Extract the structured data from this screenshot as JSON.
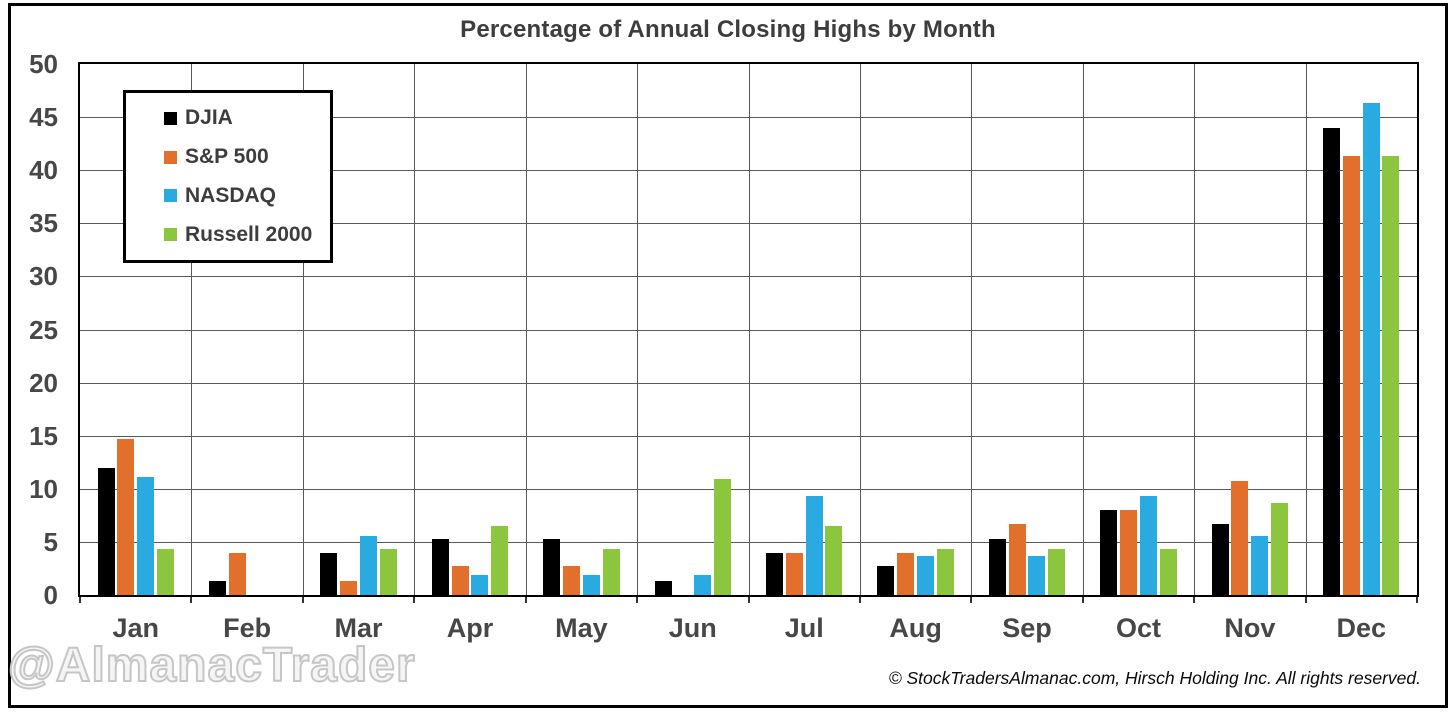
{
  "watermark": "@AlmanacTrader",
  "copyright_note": "© StockTradersAlmanac.com, Hirsch Holding Inc. All rights reserved.",
  "chart_data": {
    "type": "bar",
    "title": "Percentage of Annual Closing Highs by Month",
    "xlabel": "",
    "ylabel": "",
    "categories": [
      "Jan",
      "Feb",
      "Mar",
      "Apr",
      "May",
      "Jun",
      "Jul",
      "Aug",
      "Sep",
      "Oct",
      "Nov",
      "Dec"
    ],
    "series": [
      {
        "name": "DJIA",
        "color": "#000000",
        "values": [
          12.0,
          1.3,
          4.0,
          5.3,
          5.3,
          1.3,
          4.0,
          2.7,
          5.3,
          8.0,
          6.7,
          44.0
        ]
      },
      {
        "name": "S&P 500",
        "color": "#E2702C",
        "values": [
          14.7,
          4.0,
          1.3,
          2.7,
          2.7,
          0.0,
          4.0,
          4.0,
          6.7,
          8.0,
          10.7,
          41.3
        ]
      },
      {
        "name": "NASDAQ",
        "color": "#29ABE2",
        "values": [
          11.1,
          0.0,
          5.6,
          1.9,
          1.9,
          1.9,
          9.3,
          3.7,
          3.7,
          9.3,
          5.6,
          46.3
        ]
      },
      {
        "name": "Russell 2000",
        "color": "#8CC63F",
        "values": [
          4.3,
          0.0,
          4.3,
          6.5,
          4.3,
          10.9,
          6.5,
          4.3,
          4.3,
          4.3,
          8.7,
          41.3
        ]
      }
    ],
    "ylim": [
      0,
      50
    ],
    "yticks": [
      0,
      5,
      10,
      15,
      20,
      25,
      30,
      35,
      40,
      45,
      50
    ],
    "grid": true,
    "legend_position": "top-left"
  }
}
